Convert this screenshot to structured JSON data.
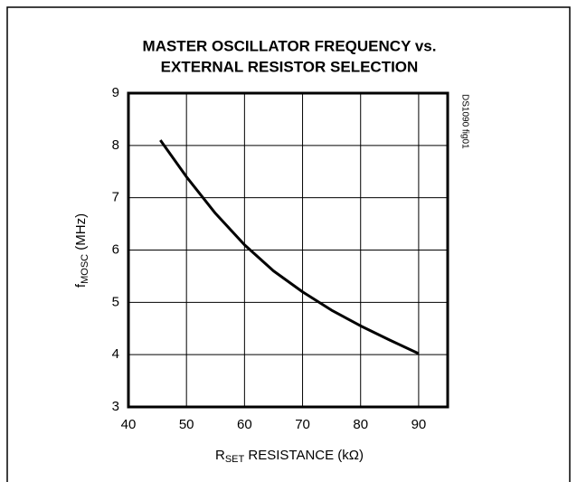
{
  "chart_data": {
    "type": "line",
    "title": [
      "MASTER OSCILLATOR FREQUENCY vs.",
      "EXTERNAL RESISTOR SELECTION"
    ],
    "xlabel": {
      "main": "R",
      "sub": "SET",
      "rest": " RESISTANCE (kΩ)"
    },
    "ylabel": {
      "main": "f",
      "sub": "MOSC",
      "rest": " (MHz)"
    },
    "annotation": "DS1090 fig01",
    "x": [
      45.5,
      50,
      55,
      60,
      65,
      70,
      75,
      80,
      85,
      90
    ],
    "series": [
      {
        "name": "fMOSC",
        "color": "#000000",
        "values": [
          8.1,
          7.4,
          6.7,
          6.1,
          5.6,
          5.2,
          4.85,
          4.55,
          4.28,
          4.02
        ]
      }
    ],
    "xlim": [
      40,
      95
    ],
    "xticks": [
      40,
      50,
      60,
      70,
      80,
      90
    ],
    "ylim": [
      3,
      9
    ],
    "yticks": [
      3,
      4,
      5,
      6,
      7,
      8,
      9
    ],
    "grid": true
  }
}
